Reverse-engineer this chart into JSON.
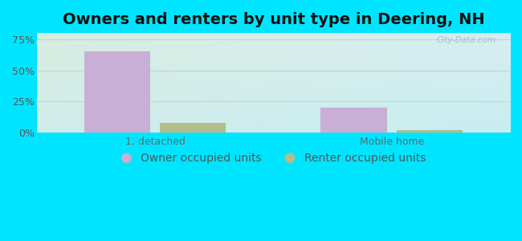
{
  "title": "Owners and renters by unit type in Deering, NH",
  "categories": [
    "1, detached",
    "Mobile home"
  ],
  "owner_values": [
    65.0,
    20.0
  ],
  "renter_values": [
    8.0,
    2.0
  ],
  "owner_color": "#c9aed6",
  "renter_color": "#b5bc8a",
  "figure_bg": "#00e5ff",
  "ylim": [
    0,
    80
  ],
  "yticks": [
    0,
    25,
    50,
    75
  ],
  "ytick_labels": [
    "0%",
    "25%",
    "50%",
    "75%"
  ],
  "title_fontsize": 14,
  "tick_fontsize": 9,
  "legend_fontsize": 10,
  "bar_width": 0.28,
  "watermark": "City-Data.com",
  "grad_top_left": "#d8ede0",
  "grad_top_right": "#d8eef2",
  "grad_bottom": "#c8eef0"
}
